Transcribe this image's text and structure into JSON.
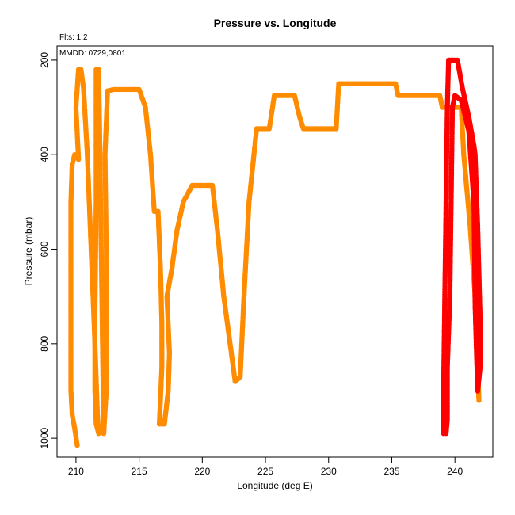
{
  "chart_data": {
    "type": "scatter",
    "title": "Pressure vs. Longitude",
    "xlabel": "Longitude (deg E)",
    "ylabel": "Pressure (mbar)",
    "annotations": [
      "Flts: 1,2",
      "MMDD: 0729,0801"
    ],
    "xlim": [
      208.5,
      243
    ],
    "ylim": [
      1040,
      170
    ],
    "y_reversed": true,
    "x_ticks": [
      210,
      215,
      220,
      225,
      230,
      235,
      240
    ],
    "y_ticks": [
      200,
      400,
      600,
      800,
      1000
    ],
    "grid": false,
    "legend": "none",
    "series": [
      {
        "color": "#ff8c00",
        "points": [
          [
            210.1,
            1015
          ],
          [
            209.9,
            980
          ],
          [
            209.7,
            950
          ],
          [
            209.6,
            900
          ],
          [
            209.6,
            800
          ],
          [
            209.6,
            700
          ],
          [
            209.6,
            600
          ],
          [
            209.6,
            500
          ],
          [
            209.7,
            420
          ],
          [
            209.9,
            400
          ],
          [
            210.2,
            410
          ],
          [
            210.0,
            300
          ],
          [
            210.2,
            220
          ],
          [
            210.4,
            220
          ],
          [
            210.6,
            260
          ],
          [
            210.9,
            400
          ],
          [
            211.2,
            600
          ],
          [
            211.5,
            800
          ],
          [
            211.7,
            950
          ],
          [
            211.8,
            990
          ],
          [
            211.6,
            970
          ],
          [
            211.5,
            900
          ],
          [
            211.5,
            750
          ],
          [
            211.6,
            500
          ],
          [
            211.6,
            220
          ],
          [
            211.8,
            220
          ],
          [
            211.9,
            400
          ],
          [
            212.0,
            600
          ],
          [
            212.1,
            800
          ],
          [
            212.2,
            990
          ],
          [
            212.4,
            900
          ],
          [
            212.4,
            600
          ],
          [
            212.3,
            400
          ],
          [
            212.5,
            265
          ],
          [
            213.0,
            262
          ],
          [
            214.0,
            262
          ],
          [
            215.0,
            262
          ],
          [
            215.5,
            300
          ],
          [
            215.9,
            400
          ],
          [
            216.2,
            520
          ],
          [
            216.5,
            520
          ],
          [
            216.7,
            650
          ],
          [
            216.8,
            760
          ],
          [
            216.8,
            850
          ],
          [
            216.6,
            970
          ],
          [
            217.0,
            970
          ],
          [
            217.3,
            900
          ],
          [
            217.4,
            820
          ],
          [
            217.2,
            700
          ],
          [
            217.6,
            640
          ],
          [
            218.0,
            560
          ],
          [
            218.5,
            500
          ],
          [
            219.2,
            465
          ],
          [
            220.0,
            465
          ],
          [
            220.8,
            465
          ],
          [
            221.2,
            560
          ],
          [
            221.7,
            700
          ],
          [
            222.2,
            800
          ],
          [
            222.6,
            880
          ],
          [
            223.0,
            870
          ],
          [
            223.3,
            700
          ],
          [
            223.7,
            500
          ],
          [
            224.3,
            345
          ],
          [
            225.3,
            345
          ],
          [
            225.7,
            275
          ],
          [
            227.3,
            275
          ],
          [
            227.7,
            320
          ],
          [
            228.0,
            345
          ],
          [
            229.0,
            345
          ],
          [
            230.6,
            345
          ],
          [
            230.8,
            250
          ],
          [
            233.0,
            250
          ],
          [
            235.3,
            250
          ],
          [
            235.5,
            275
          ],
          [
            237.5,
            275
          ],
          [
            238.8,
            275
          ],
          [
            239.0,
            300
          ],
          [
            240.5,
            300
          ],
          [
            240.7,
            400
          ],
          [
            241.2,
            550
          ],
          [
            241.6,
            700
          ],
          [
            241.8,
            850
          ],
          [
            241.9,
            920
          ],
          [
            241.7,
            800
          ],
          [
            241.6,
            700
          ]
        ]
      },
      {
        "color": "#ff0000",
        "points": [
          [
            239.1,
            990
          ],
          [
            239.1,
            900
          ],
          [
            239.2,
            700
          ],
          [
            239.3,
            500
          ],
          [
            239.4,
            300
          ],
          [
            239.5,
            200
          ],
          [
            240.2,
            200
          ],
          [
            240.6,
            260
          ],
          [
            241.1,
            320
          ],
          [
            241.5,
            380
          ],
          [
            241.6,
            400
          ],
          [
            241.8,
            550
          ],
          [
            241.9,
            650
          ],
          [
            242.0,
            750
          ],
          [
            242.0,
            850
          ],
          [
            241.8,
            900
          ],
          [
            241.6,
            720
          ],
          [
            241.5,
            500
          ],
          [
            241.1,
            350
          ],
          [
            240.5,
            285
          ],
          [
            240.0,
            275
          ],
          [
            239.8,
            300
          ],
          [
            239.7,
            500
          ],
          [
            239.6,
            700
          ],
          [
            239.4,
            850
          ],
          [
            239.4,
            960
          ],
          [
            239.3,
            990
          ]
        ]
      }
    ]
  }
}
